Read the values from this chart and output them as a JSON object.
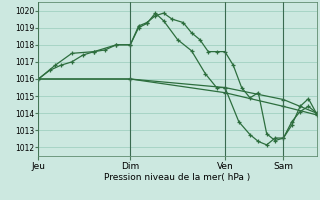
{
  "background_color": "#cce8e0",
  "grid_color": "#99ccbb",
  "line_color": "#2d6e3e",
  "ylabel": "Pression niveau de la mer( hPa )",
  "ylim": [
    1011.5,
    1020.5
  ],
  "yticks": [
    1012,
    1013,
    1014,
    1015,
    1016,
    1017,
    1018,
    1019,
    1020
  ],
  "day_labels": [
    "Jeu",
    "Dim",
    "Ven",
    "Sam"
  ],
  "day_positions": [
    0.0,
    0.33,
    0.67,
    0.88
  ],
  "vline_positions": [
    0.0,
    0.33,
    0.67,
    0.88
  ],
  "series1_x": [
    0.0,
    0.04,
    0.08,
    0.12,
    0.16,
    0.2,
    0.24,
    0.28,
    0.33,
    0.36,
    0.39,
    0.42,
    0.45,
    0.48,
    0.52,
    0.55,
    0.58,
    0.61,
    0.64,
    0.67,
    0.7,
    0.73,
    0.76,
    0.79,
    0.82,
    0.85,
    0.88,
    0.91,
    0.94,
    0.97,
    1.0
  ],
  "series1_y": [
    1016.0,
    1016.5,
    1016.8,
    1017.0,
    1017.4,
    1017.6,
    1017.7,
    1018.0,
    1018.0,
    1019.1,
    1019.3,
    1019.7,
    1019.85,
    1019.5,
    1019.3,
    1018.7,
    1018.3,
    1017.6,
    1017.6,
    1017.6,
    1016.8,
    1015.5,
    1014.9,
    1015.2,
    1012.8,
    1012.4,
    1012.55,
    1013.5,
    1014.1,
    1014.4,
    1014.0
  ],
  "series2_x": [
    0.0,
    0.06,
    0.12,
    0.2,
    0.28,
    0.33,
    0.36,
    0.39,
    0.42,
    0.45,
    0.5,
    0.55,
    0.6,
    0.64,
    0.67,
    0.72,
    0.76,
    0.79,
    0.82,
    0.85,
    0.88,
    0.91,
    0.94,
    0.97,
    1.0
  ],
  "series2_y": [
    1016.0,
    1016.8,
    1017.5,
    1017.6,
    1018.0,
    1018.0,
    1019.0,
    1019.25,
    1019.85,
    1019.4,
    1018.3,
    1017.65,
    1016.3,
    1015.5,
    1015.5,
    1013.5,
    1012.75,
    1012.35,
    1012.15,
    1012.55,
    1012.55,
    1013.3,
    1014.4,
    1014.85,
    1013.95
  ],
  "series3_x": [
    0.0,
    0.33,
    0.67,
    0.88,
    1.0
  ],
  "series3_y": [
    1016.0,
    1016.0,
    1015.5,
    1014.8,
    1014.0
  ],
  "series4_x": [
    0.0,
    0.33,
    0.67,
    0.88,
    1.0
  ],
  "series4_y": [
    1016.0,
    1016.0,
    1015.2,
    1014.4,
    1013.9
  ]
}
